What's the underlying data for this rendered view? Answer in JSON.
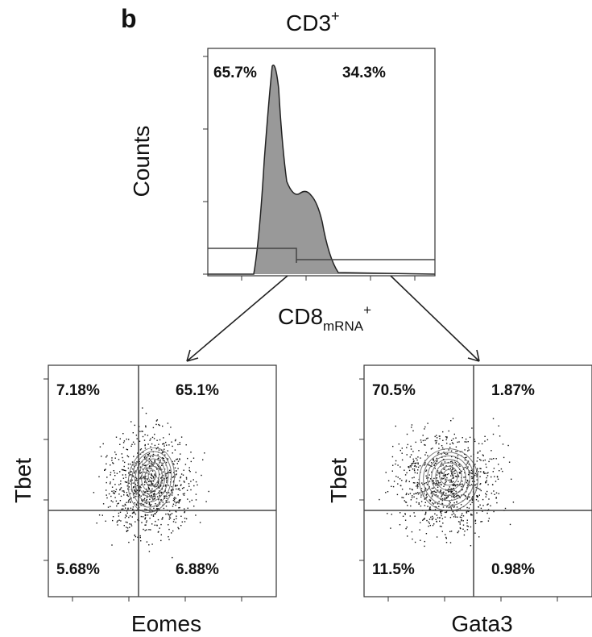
{
  "panel_label": "b",
  "histogram": {
    "title": "CD3",
    "title_sup": "+",
    "y_label": "Counts",
    "x_label": "CD8",
    "x_label_sub": "mRNA",
    "x_label_sup": "+",
    "gates": [
      "65.7%",
      "34.3%"
    ]
  },
  "plots": [
    {
      "y_label": "Tbet",
      "x_label": "Eomes",
      "quadrants": [
        "7.18%",
        "65.1%",
        "5.68%",
        "6.88%"
      ]
    },
    {
      "y_label": "Tbet",
      "x_label": "Gata3",
      "quadrants": [
        "70.5%",
        "1.87%",
        "11.5%",
        "0.98%"
      ]
    }
  ]
}
